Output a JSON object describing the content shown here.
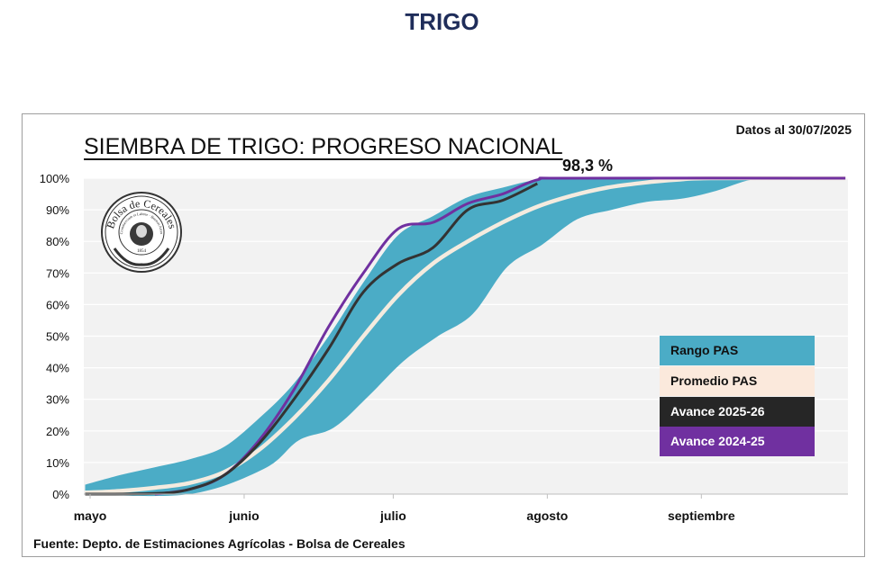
{
  "page_title": "TRIGO",
  "date_note": "Datos al 30/07/2025",
  "source": "Fuente: Depto. de Estimaciones Agrícolas - Bolsa de Cereales",
  "logo": {
    "ring_text": "Bolsa de Cereales",
    "inner_text": "Commercium et Labore · Buenos Aires",
    "year": "1854"
  },
  "colors": {
    "range": "#4bacc6",
    "average": "#f4ebdf",
    "current": "#333333",
    "previous": "#7030a0",
    "plot_bg": "#f2f2f2",
    "grid": "#ffffff"
  },
  "chart_data": {
    "type": "area",
    "title": "SIEMBRA DE TRIGO: PROGRESO NACIONAL",
    "x_axis": {
      "type": "date",
      "range": [
        "2025-05-01",
        "2025-09-30"
      ],
      "tick_labels": [
        {
          "label": "mayo",
          "date": "2025-05-01"
        },
        {
          "label": "junio",
          "date": "2025-06-01"
        },
        {
          "label": "julio",
          "date": "2025-07-01"
        },
        {
          "label": "agosto",
          "date": "2025-08-01"
        },
        {
          "label": "septiembre",
          "date": "2025-09-01"
        }
      ]
    },
    "y_axis": {
      "range": [
        0,
        100
      ],
      "tick_labels": [
        "0%",
        "10%",
        "20%",
        "30%",
        "40%",
        "50%",
        "60%",
        "70%",
        "80%",
        "90%",
        "100%"
      ]
    },
    "grid": true,
    "legend_placement": "right",
    "annotation": {
      "text": "98,3 %",
      "date": "2025-07-30",
      "value": 98.3
    },
    "series": [
      {
        "name": "Rango PAS",
        "kind": "band",
        "upper": [
          {
            "x": "2025-04-30",
            "y": 3
          },
          {
            "x": "2025-05-07",
            "y": 6
          },
          {
            "x": "2025-05-14",
            "y": 8.5
          },
          {
            "x": "2025-05-21",
            "y": 11
          },
          {
            "x": "2025-05-28",
            "y": 15
          },
          {
            "x": "2025-06-04",
            "y": 24
          },
          {
            "x": "2025-06-11",
            "y": 35
          },
          {
            "x": "2025-06-18",
            "y": 50
          },
          {
            "x": "2025-06-25",
            "y": 67
          },
          {
            "x": "2025-07-02",
            "y": 82
          },
          {
            "x": "2025-07-09",
            "y": 88
          },
          {
            "x": "2025-07-16",
            "y": 94
          },
          {
            "x": "2025-07-23",
            "y": 97
          },
          {
            "x": "2025-07-30",
            "y": 99.5
          },
          {
            "x": "2025-08-06",
            "y": 100
          },
          {
            "x": "2025-09-30",
            "y": 100
          }
        ],
        "lower": [
          {
            "x": "2025-04-30",
            "y": 0
          },
          {
            "x": "2025-05-21",
            "y": 0
          },
          {
            "x": "2025-06-05",
            "y": 8
          },
          {
            "x": "2025-06-12",
            "y": 17
          },
          {
            "x": "2025-06-19",
            "y": 21
          },
          {
            "x": "2025-06-26",
            "y": 31
          },
          {
            "x": "2025-07-03",
            "y": 42
          },
          {
            "x": "2025-07-10",
            "y": 50
          },
          {
            "x": "2025-07-17",
            "y": 57
          },
          {
            "x": "2025-07-24",
            "y": 72
          },
          {
            "x": "2025-07-31",
            "y": 79
          },
          {
            "x": "2025-08-07",
            "y": 87
          },
          {
            "x": "2025-08-14",
            "y": 90
          },
          {
            "x": "2025-08-21",
            "y": 92.5
          },
          {
            "x": "2025-08-28",
            "y": 93.5
          },
          {
            "x": "2025-09-04",
            "y": 96
          },
          {
            "x": "2025-09-11",
            "y": 99.5
          },
          {
            "x": "2025-09-18",
            "y": 100
          },
          {
            "x": "2025-09-30",
            "y": 100
          }
        ]
      },
      {
        "name": "Promedio PAS",
        "kind": "line",
        "points": [
          {
            "x": "2025-04-30",
            "y": 0.5
          },
          {
            "x": "2025-05-07",
            "y": 1
          },
          {
            "x": "2025-05-14",
            "y": 2
          },
          {
            "x": "2025-05-21",
            "y": 3.5
          },
          {
            "x": "2025-05-28",
            "y": 7
          },
          {
            "x": "2025-06-04",
            "y": 14
          },
          {
            "x": "2025-06-11",
            "y": 24
          },
          {
            "x": "2025-06-18",
            "y": 36
          },
          {
            "x": "2025-06-25",
            "y": 50
          },
          {
            "x": "2025-07-02",
            "y": 63
          },
          {
            "x": "2025-07-09",
            "y": 73
          },
          {
            "x": "2025-07-16",
            "y": 80
          },
          {
            "x": "2025-07-23",
            "y": 86
          },
          {
            "x": "2025-07-30",
            "y": 91
          },
          {
            "x": "2025-08-06",
            "y": 94.5
          },
          {
            "x": "2025-08-13",
            "y": 97
          },
          {
            "x": "2025-08-20",
            "y": 98.5
          },
          {
            "x": "2025-08-27",
            "y": 99.5
          },
          {
            "x": "2025-09-03",
            "y": 100
          },
          {
            "x": "2025-09-30",
            "y": 100
          }
        ]
      },
      {
        "name": "Avance 2025-26",
        "kind": "line",
        "points": [
          {
            "x": "2025-04-30",
            "y": 0
          },
          {
            "x": "2025-05-14",
            "y": 0.2
          },
          {
            "x": "2025-05-21",
            "y": 1.5
          },
          {
            "x": "2025-05-28",
            "y": 6
          },
          {
            "x": "2025-06-04",
            "y": 16
          },
          {
            "x": "2025-06-11",
            "y": 30
          },
          {
            "x": "2025-06-18",
            "y": 46
          },
          {
            "x": "2025-06-25",
            "y": 64
          },
          {
            "x": "2025-07-02",
            "y": 73
          },
          {
            "x": "2025-07-09",
            "y": 78
          },
          {
            "x": "2025-07-16",
            "y": 90
          },
          {
            "x": "2025-07-23",
            "y": 93
          },
          {
            "x": "2025-07-30",
            "y": 98.3
          }
        ]
      },
      {
        "name": "Avance 2024-25",
        "kind": "line",
        "points": [
          {
            "x": "2025-05-14",
            "y": 0
          },
          {
            "x": "2025-05-21",
            "y": 1.5
          },
          {
            "x": "2025-05-28",
            "y": 6
          },
          {
            "x": "2025-06-04",
            "y": 17
          },
          {
            "x": "2025-06-11",
            "y": 33
          },
          {
            "x": "2025-06-18",
            "y": 53
          },
          {
            "x": "2025-06-25",
            "y": 70
          },
          {
            "x": "2025-07-02",
            "y": 84
          },
          {
            "x": "2025-07-09",
            "y": 86
          },
          {
            "x": "2025-07-16",
            "y": 92
          },
          {
            "x": "2025-07-23",
            "y": 95
          },
          {
            "x": "2025-07-30",
            "y": 99.5
          },
          {
            "x": "2025-08-06",
            "y": 100
          },
          {
            "x": "2025-09-30",
            "y": 100
          }
        ]
      }
    ]
  }
}
